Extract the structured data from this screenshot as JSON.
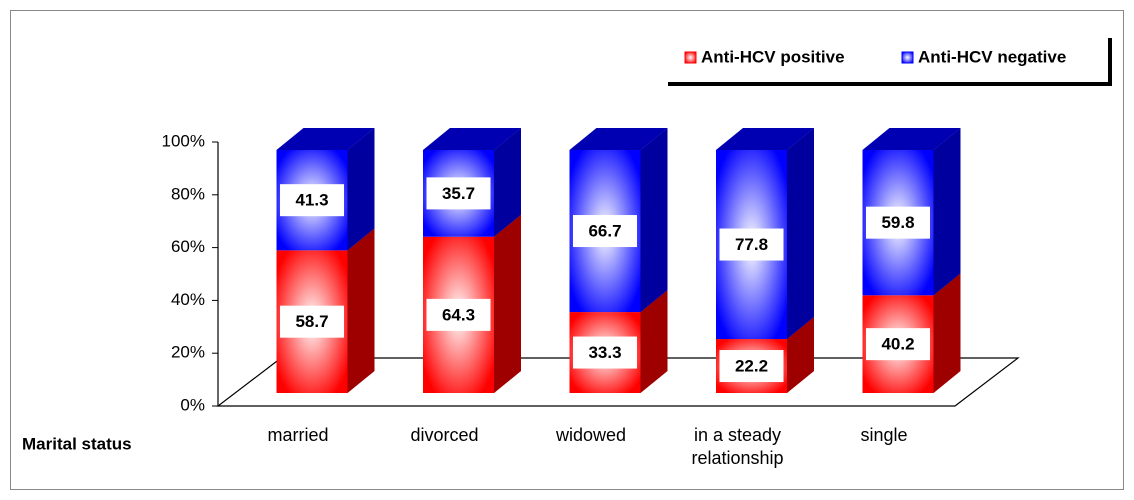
{
  "chart_data": {
    "type": "stacked_bar_3d",
    "x_label": "Marital status",
    "categories": [
      "married",
      "divorced",
      "widowed",
      "in a steady relationship",
      "single"
    ],
    "series": [
      {
        "name": "Anti-HCV positive",
        "color": "#ff0000",
        "values": [
          58.7,
          64.3,
          33.3,
          22.2,
          40.2
        ]
      },
      {
        "name": "Anti-HCV negative",
        "color": "#0000ff",
        "values": [
          41.3,
          35.7,
          66.7,
          77.8,
          59.8
        ]
      }
    ],
    "ylim": [
      0,
      100
    ],
    "yticks": [
      {
        "value": 0,
        "label": "0%"
      },
      {
        "value": 20,
        "label": "20%"
      },
      {
        "value": 40,
        "label": "40%"
      },
      {
        "value": 60,
        "label": "60%"
      },
      {
        "value": 80,
        "label": "80%"
      },
      {
        "value": 100,
        "label": "100%"
      }
    ],
    "legend": "top-right"
  }
}
